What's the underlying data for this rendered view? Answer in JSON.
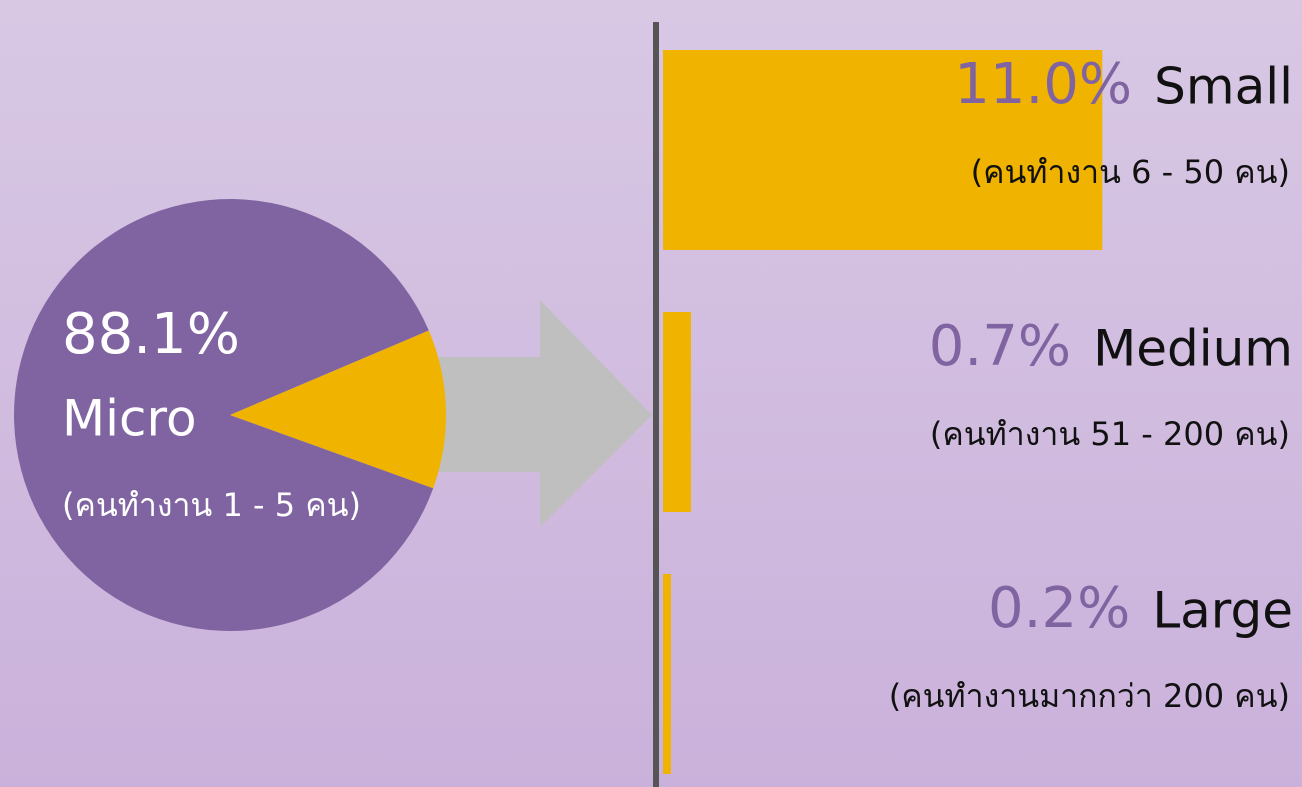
{
  "chart_data": [
    {
      "type": "pie",
      "categories": [
        "Micro",
        null
      ],
      "values": [
        88.1,
        11.9
      ],
      "value_labels": [
        "88.1%",
        null
      ],
      "descriptions": [
        "(คนทำงาน 1 - 5 คน)",
        null
      ],
      "colors": [
        "#8064a2",
        "#f0b400"
      ]
    },
    {
      "type": "bar",
      "categories": [
        "Small",
        "Medium",
        "Large"
      ],
      "values": [
        11.0,
        0.7,
        0.2
      ],
      "value_labels": [
        "11.0%",
        "0.7%",
        "0.2%"
      ],
      "descriptions": [
        "(คนทำงาน 6 - 50 คน)",
        "(คนทำงาน 51 - 200 คน)",
        "(คนทำงานมากกว่า 200 คน)"
      ],
      "color": "#f0b400",
      "label_color": "#8064a2",
      "xlim": [
        0,
        16
      ]
    }
  ]
}
